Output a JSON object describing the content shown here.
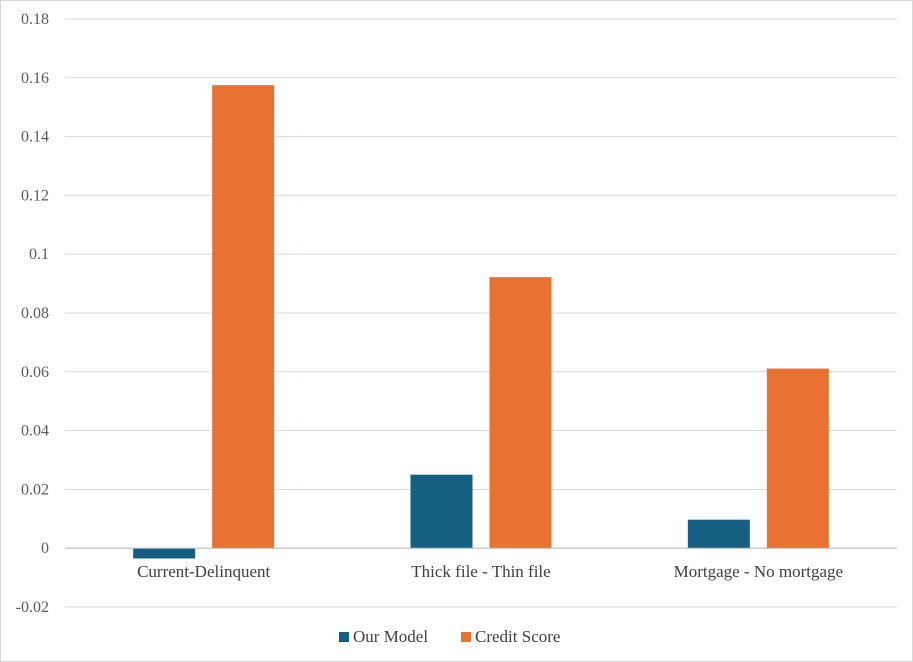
{
  "chart_data": {
    "type": "bar",
    "title": "",
    "xlabel": "",
    "ylabel": "",
    "categories": [
      "Current-Delinquent",
      "Thick file - Thin file",
      "Mortgage - No mortgage"
    ],
    "series": [
      {
        "name": "Our Model",
        "color": "#156082",
        "values": [
          -0.0035,
          0.025,
          0.0097
        ]
      },
      {
        "name": "Credit Score",
        "color": "#E97132",
        "values": [
          0.1575,
          0.0922,
          0.0611
        ]
      }
    ],
    "ylim": [
      -0.02,
      0.18
    ],
    "yticks": [
      "-0.02",
      "0",
      "0.02",
      "0.04",
      "0.06",
      "0.08",
      "0.1",
      "0.12",
      "0.14",
      "0.16",
      "0.18"
    ],
    "grid": true,
    "legend_position": "bottom"
  }
}
